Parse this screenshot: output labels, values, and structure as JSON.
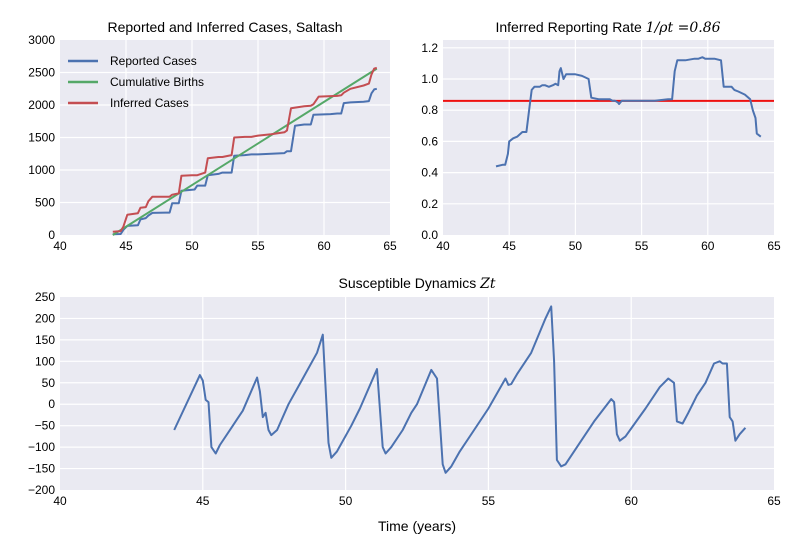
{
  "chart_data": [
    {
      "id": "cases",
      "type": "line",
      "title": "Reported and Inferred Cases, Saltash",
      "xlabel": "",
      "ylabel": "",
      "xlim": [
        40,
        65
      ],
      "ylim": [
        0,
        3000
      ],
      "xticks": [
        "40",
        "45",
        "50",
        "55",
        "60",
        "65"
      ],
      "yticks": [
        "0",
        "500",
        "1000",
        "1500",
        "2000",
        "2500",
        "3000"
      ],
      "grid": true,
      "legend": "top-left",
      "series": [
        {
          "name": "Reported Cases",
          "color": "#4c72b0",
          "points": [
            [
              44.0,
              10
            ],
            [
              44.6,
              15
            ],
            [
              44.8,
              80
            ],
            [
              45.1,
              140
            ],
            [
              45.9,
              150
            ],
            [
              46.1,
              240
            ],
            [
              46.5,
              260
            ],
            [
              46.7,
              300
            ],
            [
              47.0,
              340
            ],
            [
              48.0,
              345
            ],
            [
              48.3,
              345
            ],
            [
              48.5,
              490
            ],
            [
              49.0,
              490
            ],
            [
              49.2,
              680
            ],
            [
              49.6,
              690
            ],
            [
              50.2,
              700
            ],
            [
              50.4,
              760
            ],
            [
              51.0,
              760
            ],
            [
              51.2,
              920
            ],
            [
              52.0,
              940
            ],
            [
              52.3,
              960
            ],
            [
              53.0,
              960
            ],
            [
              53.2,
              1220
            ],
            [
              54.0,
              1230
            ],
            [
              54.5,
              1240
            ],
            [
              55.0,
              1240
            ],
            [
              56.0,
              1250
            ],
            [
              57.0,
              1260
            ],
            [
              57.2,
              1290
            ],
            [
              57.5,
              1290
            ],
            [
              57.8,
              1680
            ],
            [
              58.5,
              1700
            ],
            [
              59.0,
              1700
            ],
            [
              59.2,
              1850
            ],
            [
              60.5,
              1860
            ],
            [
              61.0,
              1870
            ],
            [
              61.3,
              1870
            ],
            [
              61.5,
              2030
            ],
            [
              62.0,
              2040
            ],
            [
              63.0,
              2050
            ],
            [
              63.4,
              2060
            ],
            [
              63.6,
              2180
            ],
            [
              63.8,
              2240
            ],
            [
              64.0,
              2250
            ]
          ]
        },
        {
          "name": "Cumulative Births",
          "color": "#55a868",
          "points": [
            [
              44.0,
              0
            ],
            [
              64.0,
              2560
            ]
          ]
        },
        {
          "name": "Inferred Cases",
          "color": "#c44e52",
          "points": [
            [
              44.0,
              50
            ],
            [
              44.6,
              60
            ],
            [
              44.8,
              130
            ],
            [
              45.1,
              310
            ],
            [
              45.9,
              335
            ],
            [
              46.1,
              420
            ],
            [
              46.5,
              430
            ],
            [
              46.7,
              520
            ],
            [
              47.0,
              590
            ],
            [
              48.0,
              590
            ],
            [
              48.3,
              590
            ],
            [
              48.5,
              620
            ],
            [
              49.0,
              640
            ],
            [
              49.2,
              910
            ],
            [
              50.0,
              920
            ],
            [
              50.4,
              920
            ],
            [
              51.0,
              960
            ],
            [
              51.2,
              1180
            ],
            [
              52.0,
              1200
            ],
            [
              52.3,
              1200
            ],
            [
              53.0,
              1230
            ],
            [
              53.2,
              1500
            ],
            [
              54.0,
              1510
            ],
            [
              54.5,
              1510
            ],
            [
              55.0,
              1530
            ],
            [
              56.0,
              1550
            ],
            [
              57.0,
              1580
            ],
            [
              57.2,
              1610
            ],
            [
              57.5,
              1950
            ],
            [
              58.5,
              1980
            ],
            [
              59.0,
              1990
            ],
            [
              59.2,
              2010
            ],
            [
              59.6,
              2130
            ],
            [
              61.0,
              2140
            ],
            [
              61.3,
              2150
            ],
            [
              61.5,
              2190
            ],
            [
              62.0,
              2250
            ],
            [
              63.0,
              2300
            ],
            [
              63.4,
              2330
            ],
            [
              63.6,
              2470
            ],
            [
              63.8,
              2560
            ],
            [
              64.0,
              2570
            ]
          ]
        }
      ]
    },
    {
      "id": "rate",
      "type": "line",
      "title": "Inferred Reporting Rate ",
      "title_math": "1/ρt =0.86",
      "xlabel": "",
      "ylabel": "",
      "xlim": [
        40,
        65
      ],
      "ylim": [
        0,
        1.25
      ],
      "xticks": [
        "40",
        "45",
        "50",
        "55",
        "60",
        "65"
      ],
      "yticks": [
        "0.0",
        "0.2",
        "0.4",
        "0.6",
        "0.8",
        "1.0",
        "1.2"
      ],
      "grid": true,
      "reference_line": {
        "y": 0.86,
        "color": "#ee1111"
      },
      "series": [
        {
          "name": "",
          "color": "#4c72b0",
          "points": [
            [
              44.0,
              0.44
            ],
            [
              44.5,
              0.45
            ],
            [
              44.7,
              0.45
            ],
            [
              44.9,
              0.52
            ],
            [
              45.0,
              0.6
            ],
            [
              45.3,
              0.62
            ],
            [
              45.6,
              0.63
            ],
            [
              46.0,
              0.66
            ],
            [
              46.3,
              0.66
            ],
            [
              46.5,
              0.8
            ],
            [
              46.7,
              0.93
            ],
            [
              46.9,
              0.95
            ],
            [
              47.3,
              0.95
            ],
            [
              47.5,
              0.96
            ],
            [
              47.7,
              0.96
            ],
            [
              48.0,
              0.95
            ],
            [
              48.3,
              0.96
            ],
            [
              48.5,
              0.97
            ],
            [
              48.7,
              0.96
            ],
            [
              48.8,
              1.05
            ],
            [
              48.9,
              1.07
            ],
            [
              49.1,
              1.0
            ],
            [
              49.3,
              1.03
            ],
            [
              50.0,
              1.03
            ],
            [
              50.5,
              1.02
            ],
            [
              51.0,
              1.0
            ],
            [
              51.2,
              0.88
            ],
            [
              51.8,
              0.87
            ],
            [
              52.3,
              0.87
            ],
            [
              52.6,
              0.87
            ],
            [
              52.8,
              0.86
            ],
            [
              53.0,
              0.86
            ],
            [
              53.2,
              0.85
            ],
            [
              53.3,
              0.84
            ],
            [
              53.5,
              0.86
            ],
            [
              54.0,
              0.86
            ],
            [
              55.0,
              0.86
            ],
            [
              56.0,
              0.86
            ],
            [
              57.0,
              0.87
            ],
            [
              57.3,
              0.87
            ],
            [
              57.5,
              1.05
            ],
            [
              57.7,
              1.12
            ],
            [
              58.3,
              1.12
            ],
            [
              59.0,
              1.13
            ],
            [
              59.3,
              1.13
            ],
            [
              59.6,
              1.14
            ],
            [
              59.8,
              1.13
            ],
            [
              60.5,
              1.13
            ],
            [
              61.0,
              1.12
            ],
            [
              61.2,
              0.95
            ],
            [
              61.8,
              0.95
            ],
            [
              62.0,
              0.93
            ],
            [
              62.3,
              0.92
            ],
            [
              62.8,
              0.9
            ],
            [
              63.2,
              0.87
            ],
            [
              63.4,
              0.8
            ],
            [
              63.6,
              0.75
            ],
            [
              63.7,
              0.65
            ],
            [
              64.0,
              0.63
            ]
          ]
        }
      ]
    },
    {
      "id": "susceptible",
      "type": "line",
      "title": "Susceptible Dynamics ",
      "title_math": "Zt",
      "xlabel": "Time (years)",
      "ylabel": "",
      "xlim": [
        40,
        65
      ],
      "ylim": [
        -200,
        250
      ],
      "xticks": [
        "40",
        "45",
        "50",
        "55",
        "60",
        "65"
      ],
      "yticks": [
        "−200",
        "−150",
        "−100",
        "−50",
        "0",
        "50",
        "100",
        "150",
        "200",
        "250"
      ],
      "grid": true,
      "series": [
        {
          "name": "",
          "color": "#4c72b0",
          "points": [
            [
              44.0,
              -60
            ],
            [
              44.9,
              68
            ],
            [
              45.0,
              55
            ],
            [
              45.1,
              10
            ],
            [
              45.2,
              5
            ],
            [
              45.3,
              -100
            ],
            [
              45.45,
              -115
            ],
            [
              45.6,
              -95
            ],
            [
              46.0,
              -55
            ],
            [
              46.2,
              -35
            ],
            [
              46.4,
              -15
            ],
            [
              46.9,
              62
            ],
            [
              47.0,
              30
            ],
            [
              47.1,
              -30
            ],
            [
              47.2,
              -20
            ],
            [
              47.3,
              -60
            ],
            [
              47.4,
              -72
            ],
            [
              47.6,
              -60
            ],
            [
              48.0,
              0
            ],
            [
              48.5,
              60
            ],
            [
              49.0,
              120
            ],
            [
              49.2,
              162
            ],
            [
              49.4,
              -90
            ],
            [
              49.5,
              -125
            ],
            [
              49.7,
              -110
            ],
            [
              50.2,
              -50
            ],
            [
              50.5,
              -10
            ],
            [
              51.1,
              82
            ],
            [
              51.3,
              -100
            ],
            [
              51.4,
              -115
            ],
            [
              51.6,
              -100
            ],
            [
              52.0,
              -60
            ],
            [
              52.3,
              -20
            ],
            [
              52.5,
              0
            ],
            [
              53.0,
              80
            ],
            [
              53.2,
              60
            ],
            [
              53.4,
              -140
            ],
            [
              53.5,
              -160
            ],
            [
              53.7,
              -145
            ],
            [
              54.0,
              -110
            ],
            [
              54.5,
              -60
            ],
            [
              55.0,
              -10
            ],
            [
              55.6,
              60
            ],
            [
              55.7,
              45
            ],
            [
              55.8,
              47
            ],
            [
              56.0,
              70
            ],
            [
              56.5,
              120
            ],
            [
              57.0,
              200
            ],
            [
              57.2,
              228
            ],
            [
              57.3,
              100
            ],
            [
              57.4,
              -130
            ],
            [
              57.55,
              -145
            ],
            [
              57.7,
              -140
            ],
            [
              58.2,
              -90
            ],
            [
              58.7,
              -40
            ],
            [
              59.3,
              12
            ],
            [
              59.4,
              5
            ],
            [
              59.5,
              -70
            ],
            [
              59.6,
              -85
            ],
            [
              59.8,
              -75
            ],
            [
              60.5,
              -10
            ],
            [
              61.0,
              40
            ],
            [
              61.3,
              60
            ],
            [
              61.5,
              50
            ],
            [
              61.6,
              -40
            ],
            [
              61.8,
              -45
            ],
            [
              62.0,
              -20
            ],
            [
              62.3,
              20
            ],
            [
              62.6,
              50
            ],
            [
              62.9,
              95
            ],
            [
              63.1,
              100
            ],
            [
              63.2,
              95
            ],
            [
              63.35,
              95
            ],
            [
              63.45,
              -30
            ],
            [
              63.55,
              -40
            ],
            [
              63.65,
              -85
            ],
            [
              63.8,
              -70
            ],
            [
              64.0,
              -55
            ]
          ]
        }
      ]
    }
  ]
}
